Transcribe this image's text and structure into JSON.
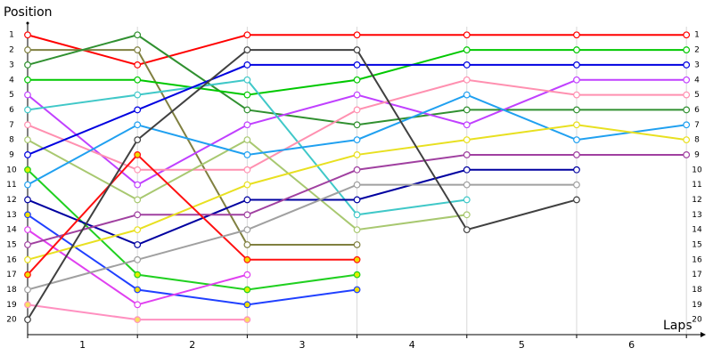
{
  "chart_data": {
    "type": "line",
    "title": "Position",
    "x_label": "Laps",
    "x": [
      0,
      1,
      2,
      3,
      4,
      5,
      6
    ],
    "xlim": [
      0,
      6.1
    ],
    "xticks": [
      {
        "value": 0.5,
        "label": "1"
      },
      {
        "value": 1.5,
        "label": "2"
      },
      {
        "value": 2.5,
        "label": "3"
      },
      {
        "value": 3.5,
        "label": "4"
      },
      {
        "value": 4.5,
        "label": "5"
      },
      {
        "value": 5.5,
        "label": "6"
      }
    ],
    "ylim": [
      21,
      0
    ],
    "yticks": [
      1,
      2,
      3,
      4,
      5,
      6,
      7,
      8,
      9,
      10,
      11,
      12,
      13,
      14,
      15,
      16,
      17,
      18,
      19,
      20
    ],
    "grid": true,
    "series": [
      {
        "color": "#ff0000",
        "values": [
          1,
          3,
          1,
          1,
          1,
          1,
          1
        ]
      },
      {
        "color": "#808040",
        "values": [
          2,
          2,
          15,
          15,
          null,
          null,
          null
        ]
      },
      {
        "color": "#309030",
        "values": [
          3,
          1,
          6,
          7,
          6,
          6,
          6
        ]
      },
      {
        "color": "#00c800",
        "values": [
          4,
          4,
          5,
          4,
          2,
          2,
          2
        ]
      },
      {
        "color": "#c040ff",
        "values": [
          5,
          11,
          7,
          5,
          7,
          4,
          4
        ]
      },
      {
        "color": "#40c8c8",
        "values": [
          6,
          5,
          4,
          13,
          12,
          null,
          null
        ]
      },
      {
        "color": "#ff90b0",
        "values": [
          7,
          10,
          10,
          6,
          4,
          5,
          5
        ]
      },
      {
        "color": "#a8c870",
        "values": [
          8,
          12,
          8,
          14,
          13,
          null,
          null
        ]
      },
      {
        "color": "#0000e0",
        "values": [
          9,
          6,
          3,
          3,
          3,
          3,
          3
        ]
      },
      {
        "color": "#20d020",
        "marker_fill": "#e0f000",
        "values": [
          10,
          17,
          18,
          17,
          null,
          null,
          null
        ]
      },
      {
        "color": "#20a0f0",
        "values": [
          11,
          7,
          9,
          8,
          5,
          8,
          7
        ]
      },
      {
        "color": "#0000a0",
        "values": [
          12,
          15,
          12,
          12,
          10,
          10,
          null
        ]
      },
      {
        "color": "#2040ff",
        "marker_fill": "#f0e000",
        "values": [
          13,
          18,
          19,
          18,
          null,
          null,
          null
        ]
      },
      {
        "color": "#e040f0",
        "values": [
          14,
          19,
          17,
          null,
          null,
          null,
          null
        ]
      },
      {
        "color": "#a040a0",
        "values": [
          15,
          13,
          13,
          10,
          9,
          9,
          9
        ]
      },
      {
        "color": "#e8e020",
        "values": [
          16,
          14,
          11,
          9,
          8,
          7,
          8
        ]
      },
      {
        "color": "#ff1010",
        "marker_fill": "#f0e000",
        "values": [
          17,
          9,
          16,
          16,
          null,
          null,
          null
        ]
      },
      {
        "color": "#a0a0a0",
        "values": [
          18,
          16,
          14,
          11,
          11,
          11,
          null
        ]
      },
      {
        "color": "#ff90c0",
        "marker_fill": "#f8e060",
        "values": [
          19,
          20,
          20,
          null,
          null,
          null,
          null
        ]
      },
      {
        "color": "#404040",
        "values": [
          20,
          8,
          2,
          2,
          14,
          12,
          null
        ]
      }
    ]
  }
}
